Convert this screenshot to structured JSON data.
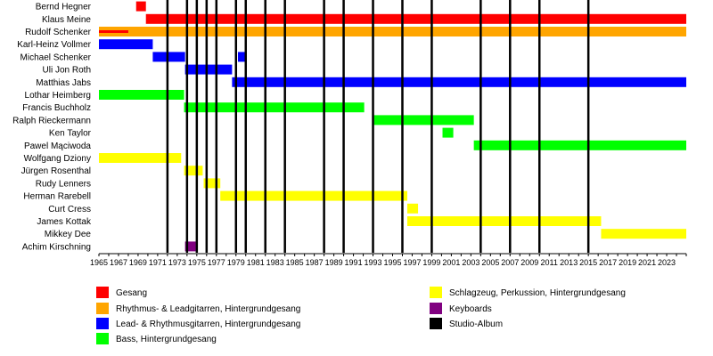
{
  "chart_data": {
    "type": "timeline",
    "title": "",
    "x_range": [
      1965,
      2025
    ],
    "x_ticks": [
      1965,
      1967,
      1969,
      1971,
      1973,
      1975,
      1977,
      1979,
      1981,
      1983,
      1985,
      1987,
      1989,
      1991,
      1993,
      1995,
      1997,
      1999,
      2001,
      2003,
      2005,
      2007,
      2009,
      2011,
      2013,
      2015,
      2017,
      2019,
      2021,
      2023
    ],
    "members": [
      "Bernd Hegner",
      "Klaus Meine",
      "Rudolf Schenker",
      "Karl-Heinz Vollmer",
      "Michael Schenker",
      "Uli Jon Roth",
      "Matthias Jabs",
      "Lothar Heimberg",
      "Francis Buchholz",
      "Ralph Rieckermann",
      "Ken Taylor",
      "Pawel Mąciwoda",
      "Wolfgang Dziony",
      "Jürgen Rosenthal",
      "Rudy Lenners",
      "Herman Rarebell",
      "Curt Cress",
      "James Kottak",
      "Mikkey Dee",
      "Achim Kirschning"
    ],
    "roles": {
      "vocals": {
        "label": "Gesang",
        "color": "#ff0000"
      },
      "rhythm": {
        "label": "Rhythmus- & Leadgitarren, Hintergrundgesang",
        "color": "#ffa500"
      },
      "lead": {
        "label": "Lead- & Rhythmusgitarren, Hintergrundgesang",
        "color": "#0000ff"
      },
      "bass": {
        "label": "Bass, Hintergrundgesang",
        "color": "#00ff00"
      },
      "drums": {
        "label": "Schlagzeug, Perkussion, Hintergrundgesang",
        "color": "#ffff00"
      },
      "keys": {
        "label": "Keyboards",
        "color": "#800080"
      },
      "album": {
        "label": "Studio-Album",
        "color": "#000000"
      }
    },
    "bars": [
      {
        "member": 0,
        "role": "vocals",
        "start": 1968.8,
        "end": 1969.8
      },
      {
        "member": 1,
        "role": "vocals",
        "start": 1969.8,
        "end": 2025
      },
      {
        "member": 2,
        "role": "rhythm",
        "start": 1965,
        "end": 2025
      },
      {
        "member": 2,
        "role": "vocals",
        "start": 1965,
        "end": 1968.0,
        "thin": true
      },
      {
        "member": 3,
        "role": "lead",
        "start": 1965,
        "end": 1970.5
      },
      {
        "member": 4,
        "role": "lead",
        "start": 1970.5,
        "end": 1973.8
      },
      {
        "member": 4,
        "role": "lead",
        "start": 1979.2,
        "end": 1980.1
      },
      {
        "member": 5,
        "role": "lead",
        "start": 1973.8,
        "end": 1978.6
      },
      {
        "member": 6,
        "role": "lead",
        "start": 1978.6,
        "end": 2025
      },
      {
        "member": 7,
        "role": "bass",
        "start": 1965,
        "end": 1973.7
      },
      {
        "member": 8,
        "role": "bass",
        "start": 1973.7,
        "end": 1992.1
      },
      {
        "member": 9,
        "role": "bass",
        "start": 1993.1,
        "end": 2003.3
      },
      {
        "member": 10,
        "role": "bass",
        "start": 2000.1,
        "end": 2001.2
      },
      {
        "member": 11,
        "role": "bass",
        "start": 2003.3,
        "end": 2025
      },
      {
        "member": 12,
        "role": "drums",
        "start": 1965,
        "end": 1973.4
      },
      {
        "member": 13,
        "role": "drums",
        "start": 1973.7,
        "end": 1975.6
      },
      {
        "member": 14,
        "role": "drums",
        "start": 1975.7,
        "end": 1977.4
      },
      {
        "member": 15,
        "role": "drums",
        "start": 1977.4,
        "end": 1996.5
      },
      {
        "member": 16,
        "role": "drums",
        "start": 1996.5,
        "end": 1997.6
      },
      {
        "member": 17,
        "role": "drums",
        "start": 1996.5,
        "end": 2016.3
      },
      {
        "member": 18,
        "role": "drums",
        "start": 2016.3,
        "end": 2025
      },
      {
        "member": 19,
        "role": "keys",
        "start": 1973.8,
        "end": 1974.9
      }
    ],
    "albums": [
      1972,
      1974,
      1975,
      1976,
      1977,
      1979,
      1980,
      1982,
      1984,
      1988,
      1990,
      1993,
      1996,
      1999,
      2004,
      2007,
      2010,
      2015
    ],
    "legend_order": [
      "vocals",
      "rhythm",
      "lead",
      "bass",
      "drums",
      "keys",
      "album"
    ]
  }
}
